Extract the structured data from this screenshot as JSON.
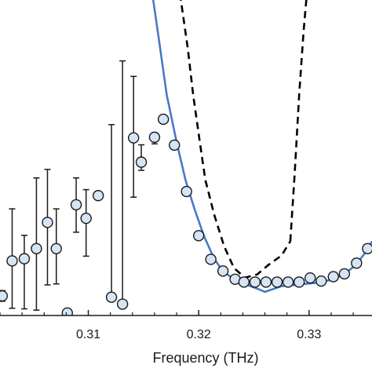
{
  "chart_data": {
    "type": "scatter",
    "xlabel": "Frequency (THz)",
    "ylabel": "",
    "title": "",
    "xlim": [
      0.302,
      0.3357
    ],
    "ylim": [
      0,
      1
    ],
    "x_ticks": [
      {
        "value": 0.31,
        "label": "0.31"
      },
      {
        "value": 0.32,
        "label": "0.32"
      },
      {
        "value": 0.33,
        "label": "0.33"
      }
    ],
    "grid": false,
    "legend": "none",
    "colors": {
      "marker_fill": "#d6e4f5",
      "marker_edge": "#1a1a1a",
      "fit_line": "#4a78c8",
      "dashed_line": "#000000",
      "axis": "#1a1a1a"
    },
    "series": [
      {
        "kind": "points",
        "points": [
          {
            "x": 0.3022,
            "y": 0.062,
            "lo": 0.045,
            "hi": 0.079
          },
          {
            "x": 0.3031,
            "y": 0.173,
            "lo": 0.023,
            "hi": 0.338
          },
          {
            "x": 0.3042,
            "y": 0.18,
            "lo": 0.021,
            "hi": 0.254
          },
          {
            "x": 0.3053,
            "y": 0.212,
            "lo": 0.017,
            "hi": 0.436
          },
          {
            "x": 0.3063,
            "y": 0.295,
            "lo": 0.097,
            "hi": 0.463
          },
          {
            "x": 0.3071,
            "y": 0.212,
            "lo": 0.1,
            "hi": 0.338
          },
          {
            "x": 0.3081,
            "y": 0.008,
            "lo": 0.008,
            "hi": 0.008
          },
          {
            "x": 0.3089,
            "y": 0.351,
            "lo": 0.264,
            "hi": 0.436
          },
          {
            "x": 0.3098,
            "y": 0.308,
            "lo": 0.188,
            "hi": 0.399
          },
          {
            "x": 0.3109,
            "y": 0.38,
            "lo": 0.38,
            "hi": 0.38
          },
          {
            "x": 0.3121,
            "y": 0.058,
            "lo": 0.058,
            "hi": 0.605
          },
          {
            "x": 0.3131,
            "y": 0.036,
            "lo": 0.036,
            "hi": 0.807
          },
          {
            "x": 0.3141,
            "y": 0.563,
            "lo": 0.375,
            "hi": 0.758
          },
          {
            "x": 0.3148,
            "y": 0.486,
            "lo": 0.46,
            "hi": 0.541
          },
          {
            "x": 0.316,
            "y": 0.565,
            "lo": 0.544,
            "hi": 0.573
          },
          {
            "x": 0.3168,
            "y": 0.622,
            "lo": 0.622,
            "hi": 0.622
          },
          {
            "x": 0.3178,
            "y": 0.54,
            "lo": 0.54,
            "hi": 0.54
          },
          {
            "x": 0.3189,
            "y": 0.393,
            "lo": 0.393,
            "hi": 0.393
          },
          {
            "x": 0.32,
            "y": 0.253,
            "lo": 0.253,
            "hi": 0.253
          },
          {
            "x": 0.3211,
            "y": 0.178,
            "lo": 0.178,
            "hi": 0.178
          },
          {
            "x": 0.3222,
            "y": 0.141,
            "lo": 0.141,
            "hi": 0.141
          },
          {
            "x": 0.3233,
            "y": 0.115,
            "lo": 0.115,
            "hi": 0.115
          },
          {
            "x": 0.3241,
            "y": 0.106,
            "lo": 0.106,
            "hi": 0.106
          },
          {
            "x": 0.3251,
            "y": 0.106,
            "lo": 0.106,
            "hi": 0.106
          },
          {
            "x": 0.3261,
            "y": 0.106,
            "lo": 0.106,
            "hi": 0.106
          },
          {
            "x": 0.3271,
            "y": 0.106,
            "lo": 0.106,
            "hi": 0.106
          },
          {
            "x": 0.3281,
            "y": 0.106,
            "lo": 0.106,
            "hi": 0.106
          },
          {
            "x": 0.3291,
            "y": 0.106,
            "lo": 0.106,
            "hi": 0.106
          },
          {
            "x": 0.3301,
            "y": 0.119,
            "lo": 0.119,
            "hi": 0.119
          },
          {
            "x": 0.3311,
            "y": 0.109,
            "lo": 0.109,
            "hi": 0.109
          },
          {
            "x": 0.3322,
            "y": 0.123,
            "lo": 0.123,
            "hi": 0.123
          },
          {
            "x": 0.3332,
            "y": 0.132,
            "lo": 0.132,
            "hi": 0.132
          },
          {
            "x": 0.3343,
            "y": 0.166,
            "lo": 0.166,
            "hi": 0.166
          },
          {
            "x": 0.3353,
            "y": 0.212,
            "lo": 0.212,
            "hi": 0.212
          }
        ]
      },
      {
        "kind": "line",
        "style": "solid",
        "points": [
          [
            0.3158,
            1.02
          ],
          [
            0.3165,
            0.85
          ],
          [
            0.3171,
            0.7
          ],
          [
            0.318,
            0.55
          ],
          [
            0.3188,
            0.43
          ],
          [
            0.3196,
            0.34
          ],
          [
            0.3205,
            0.25
          ],
          [
            0.3214,
            0.18
          ],
          [
            0.3222,
            0.14
          ],
          [
            0.3232,
            0.115
          ],
          [
            0.3243,
            0.098
          ],
          [
            0.3253,
            0.085
          ],
          [
            0.326,
            0.075
          ],
          [
            0.3266,
            0.082
          ],
          [
            0.3275,
            0.093
          ],
          [
            0.329,
            0.098
          ],
          [
            0.3305,
            0.103
          ],
          [
            0.332,
            0.113
          ],
          [
            0.3333,
            0.133
          ],
          [
            0.3343,
            0.163
          ],
          [
            0.3351,
            0.2
          ],
          [
            0.3357,
            0.235
          ]
        ]
      },
      {
        "kind": "line",
        "style": "dashed",
        "segments": [
          [
            [
              0.3183,
              1.02
            ],
            [
              0.319,
              0.85
            ],
            [
              0.3195,
              0.7
            ],
            [
              0.3201,
              0.55
            ],
            [
              0.3206,
              0.43
            ],
            [
              0.3214,
              0.32
            ],
            [
              0.3223,
              0.22
            ],
            [
              0.3232,
              0.15
            ],
            [
              0.3242,
              0.12
            ],
            [
              0.3253,
              0.13
            ],
            [
              0.3263,
              0.16
            ],
            [
              0.3275,
              0.19
            ],
            [
              0.3283,
              0.235
            ]
          ],
          [
            [
              0.3283,
              0.235
            ],
            [
              0.3287,
              0.45
            ],
            [
              0.3291,
              0.7
            ],
            [
              0.3295,
              0.9
            ],
            [
              0.3298,
              1.02
            ]
          ]
        ]
      }
    ]
  }
}
